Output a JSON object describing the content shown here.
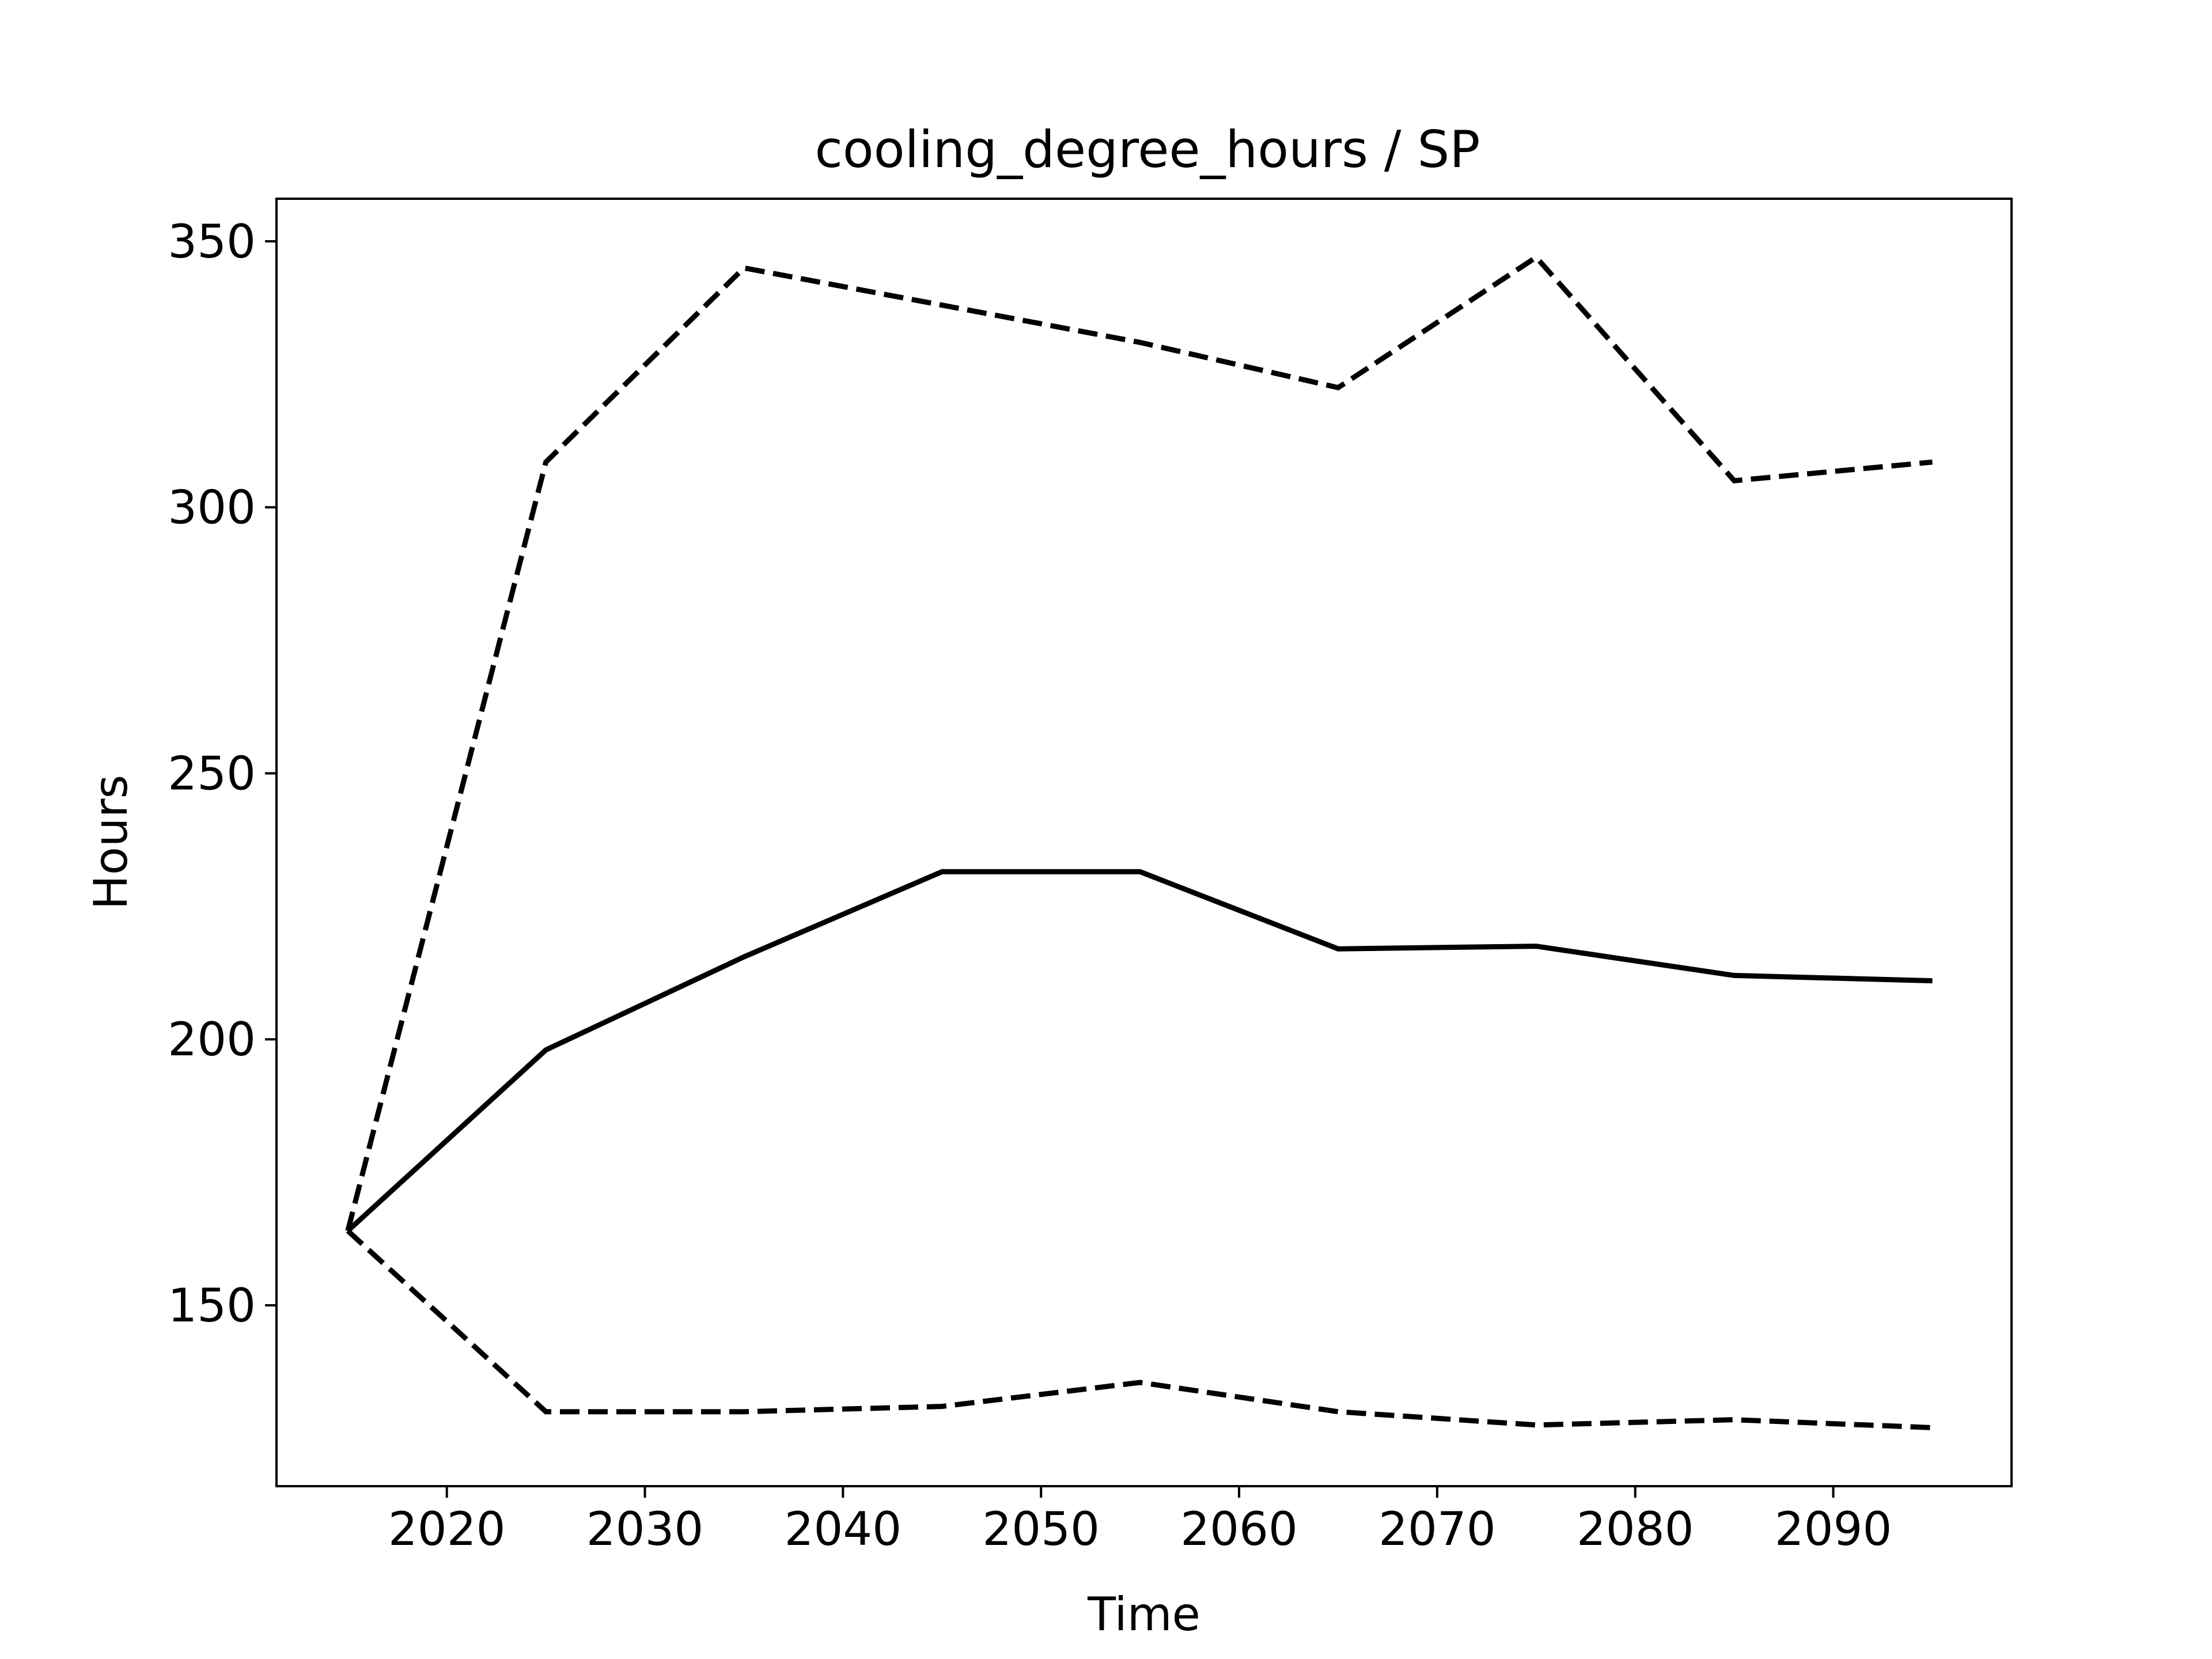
{
  "chart_data": {
    "type": "line",
    "title": "cooling_degree_hours / SP",
    "xlabel": "Time",
    "ylabel": "Hours",
    "xlim": [
      2011.4,
      2099.0
    ],
    "ylim": [
      116,
      358
    ],
    "xticks": [
      2020,
      2030,
      2040,
      2050,
      2060,
      2070,
      2080,
      2090
    ],
    "yticks": [
      150,
      200,
      250,
      300,
      350
    ],
    "grid": false,
    "legend": "none",
    "x": [
      2015,
      2025,
      2035,
      2045,
      2055,
      2065,
      2075,
      2085,
      2095
    ],
    "series": [
      {
        "style": "solid",
        "color": "#000000",
        "values": [
          164,
          198,
          215.5,
          231.5,
          231.5,
          217,
          217.5,
          212,
          211
        ]
      },
      {
        "style": "dashed",
        "color": "#000000",
        "values": [
          164,
          308.5,
          345,
          338,
          331,
          322.5,
          347,
          305,
          308.5
        ]
      },
      {
        "style": "dashed",
        "color": "#000000",
        "values": [
          164,
          130,
          130,
          131,
          135.5,
          130,
          127.5,
          128.5,
          127
        ]
      }
    ]
  }
}
